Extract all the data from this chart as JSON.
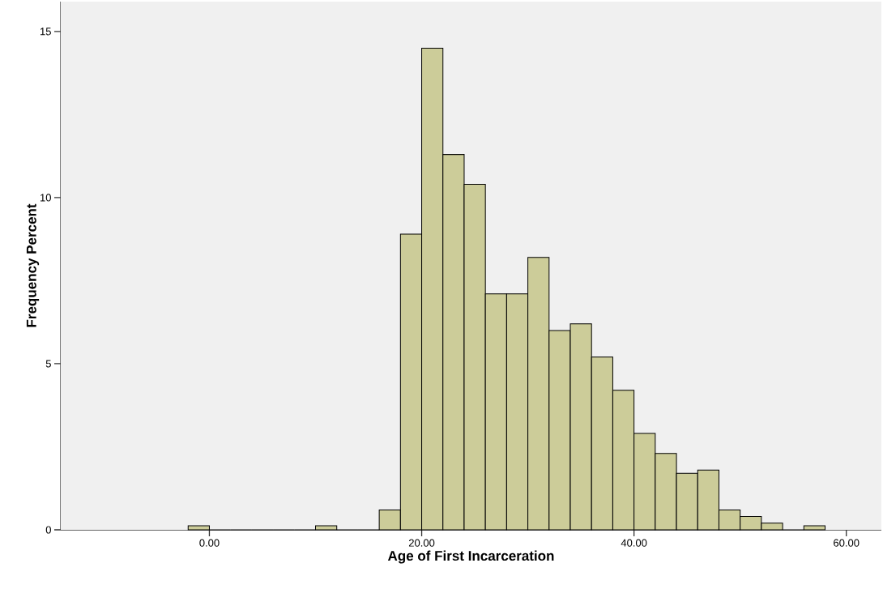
{
  "chart_data": {
    "type": "histogram",
    "xlabel": "Age of First Incarceration",
    "ylabel": "Frequency Percent",
    "bins": [
      -2,
      0,
      2,
      4,
      6,
      8,
      10,
      12,
      14,
      16,
      18,
      20,
      22,
      24,
      26,
      28,
      30,
      32,
      34,
      36,
      38,
      40,
      42,
      44,
      46,
      48,
      50,
      52,
      54,
      56,
      58
    ],
    "values": [
      0.12,
      0,
      0,
      0,
      0,
      0,
      0.12,
      0,
      0,
      0.6,
      8.9,
      14.5,
      11.3,
      10.4,
      7.1,
      7.1,
      8.2,
      6.0,
      6.2,
      5.2,
      4.2,
      2.9,
      2.3,
      1.7,
      1.8,
      0.6,
      0.4,
      0.2,
      0,
      0.12
    ],
    "color": "#cccc99",
    "xlim": [
      -14,
      63.3
    ],
    "ylim": [
      0,
      15.9
    ],
    "xticks": [
      {
        "value": 0,
        "label": "0.00"
      },
      {
        "value": 20,
        "label": "20.00"
      },
      {
        "value": 40,
        "label": "40.00"
      },
      {
        "value": 60,
        "label": "60.00"
      }
    ],
    "yticks": [
      0,
      5,
      10,
      15
    ]
  }
}
